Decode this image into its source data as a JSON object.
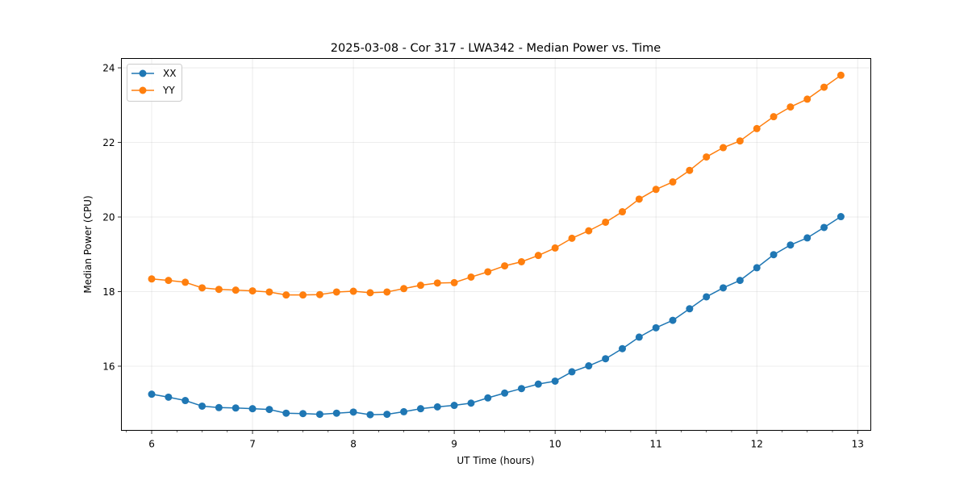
{
  "chart_data": {
    "type": "line",
    "title": "2025-03-08 - Cor 317 - LWA342 - Median Power vs. Time",
    "xlabel": "UT Time (hours)",
    "ylabel": "Median Power (CPU)",
    "xlim": [
      5.7,
      13.13
    ],
    "ylim": [
      14.28,
      24.25
    ],
    "xticks": [
      6,
      7,
      8,
      9,
      10,
      11,
      12,
      13
    ],
    "yticks": [
      16,
      18,
      20,
      22,
      24
    ],
    "xminor_step": 0.25,
    "grid": true,
    "legend_position": "upper-left",
    "x": [
      6.0,
      6.1667,
      6.3333,
      6.5,
      6.6667,
      6.8333,
      7.0,
      7.1667,
      7.3333,
      7.5,
      7.6667,
      7.8333,
      8.0,
      8.1667,
      8.3333,
      8.5,
      8.6667,
      8.8333,
      9.0,
      9.1667,
      9.3333,
      9.5,
      9.6667,
      9.8333,
      10.0,
      10.1667,
      10.3333,
      10.5,
      10.6667,
      10.8333,
      11.0,
      11.1667,
      11.3333,
      11.5,
      11.6667,
      11.8333,
      12.0,
      12.1667,
      12.3333,
      12.5,
      12.6667,
      12.8333
    ],
    "series": [
      {
        "name": "XX",
        "color": "#1f77b4",
        "values": [
          15.25,
          15.17,
          15.08,
          14.93,
          14.89,
          14.88,
          14.86,
          14.84,
          14.74,
          14.73,
          14.71,
          14.74,
          14.77,
          14.7,
          14.71,
          14.78,
          14.86,
          14.91,
          14.95,
          15.01,
          15.15,
          15.28,
          15.4,
          15.52,
          15.6,
          15.85,
          16.01,
          16.2,
          16.47,
          16.78,
          17.03,
          17.23,
          17.54,
          17.86,
          18.1,
          18.3,
          18.64,
          18.99,
          19.25,
          19.44,
          19.72,
          20.01
        ]
      },
      {
        "name": "YY",
        "color": "#ff7f0e",
        "values": [
          18.34,
          18.3,
          18.25,
          18.1,
          18.06,
          18.04,
          18.02,
          17.99,
          17.91,
          17.91,
          17.92,
          17.99,
          18.01,
          17.97,
          17.99,
          18.08,
          18.17,
          18.23,
          18.24,
          18.39,
          18.53,
          18.69,
          18.8,
          18.97,
          19.17,
          19.43,
          19.63,
          19.86,
          20.14,
          20.48,
          20.74,
          20.94,
          21.25,
          21.61,
          21.86,
          22.04,
          22.37,
          22.69,
          22.95,
          23.16,
          23.48,
          23.8
        ]
      }
    ]
  }
}
